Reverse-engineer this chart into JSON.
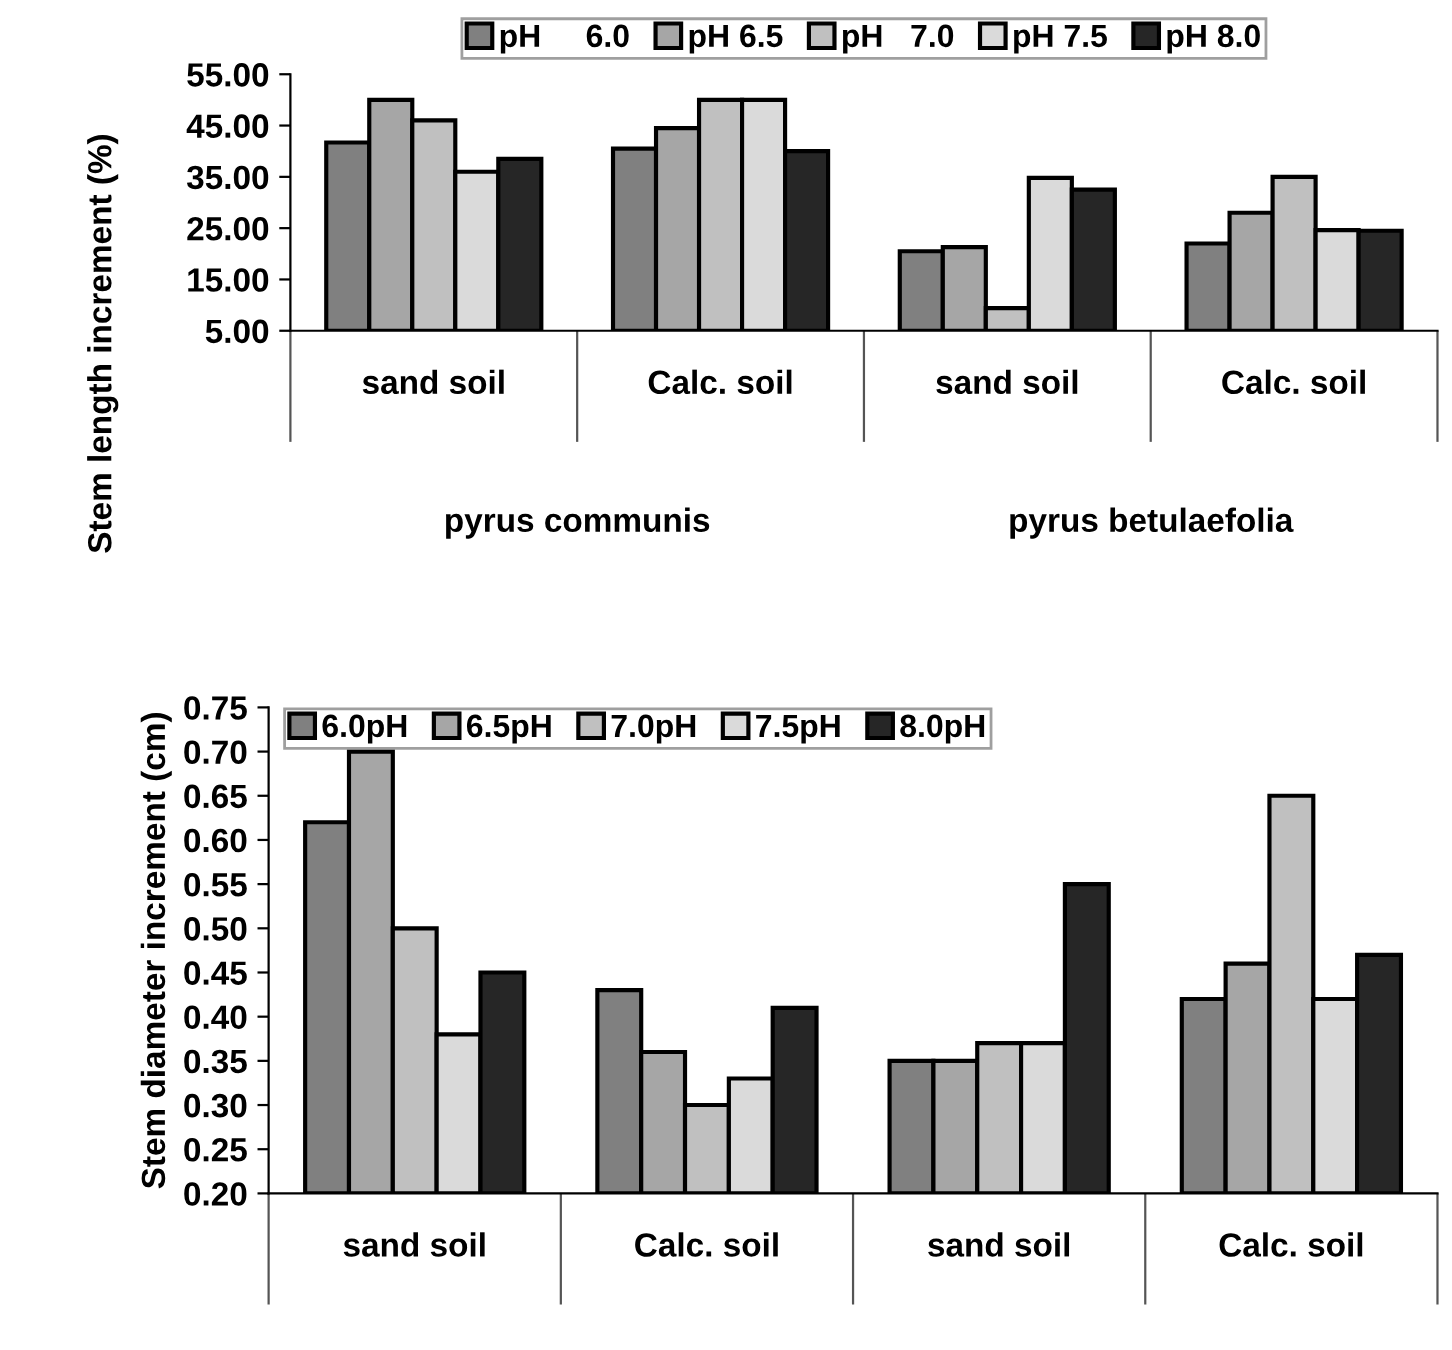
{
  "chart_data": [
    {
      "type": "bar",
      "ylabel": "Stem length increment (%)",
      "categories": [
        "sand soil",
        "Calc. soil",
        "sand soil",
        "Calc. soil"
      ],
      "series": [
        {
          "name": "pH     6.0",
          "color": "#808080",
          "values": [
            41.7,
            40.5,
            20.5,
            22
          ]
        },
        {
          "name": "pH 6.5",
          "color": "#a6a6a6",
          "values": [
            50,
            44.5,
            21.3,
            28
          ]
        },
        {
          "name": "pH   7.0",
          "color": "#c0c0c0",
          "values": [
            46,
            50,
            9.4,
            35
          ]
        },
        {
          "name": "pH 7.5",
          "color": "#dadada",
          "values": [
            36,
            50,
            34.8,
            24.6
          ]
        },
        {
          "name": "pH 8.0",
          "color": "#262626",
          "values": [
            38.5,
            40,
            32.5,
            24.5
          ]
        }
      ],
      "ylim": [
        5,
        55
      ],
      "yticks": [
        {
          "value": 5,
          "label": "5.00"
        },
        {
          "value": 15,
          "label": "15.00"
        },
        {
          "value": 25,
          "label": "25.00"
        },
        {
          "value": 35,
          "label": "35.00"
        },
        {
          "value": 45,
          "label": "45.00"
        },
        {
          "value": 55,
          "label": "55.00"
        }
      ],
      "annotations": [
        "pyrus communis",
        "pyrus betulaefolia"
      ],
      "legend": "top",
      "grid": false
    },
    {
      "type": "bar",
      "ylabel": "Stem diameter increment (cm)",
      "categories": [
        "sand soil",
        "Calc. soil",
        "sand soil",
        "Calc. soil"
      ],
      "series": [
        {
          "name": "6.0pH",
          "color": "#808080",
          "values": [
            0.62,
            0.43,
            0.35,
            0.42
          ]
        },
        {
          "name": "6.5pH",
          "color": "#a6a6a6",
          "values": [
            0.7,
            0.36,
            0.35,
            0.46
          ]
        },
        {
          "name": "7.0pH",
          "color": "#c0c0c0",
          "values": [
            0.5,
            0.3,
            0.37,
            0.65
          ]
        },
        {
          "name": "7.5pH",
          "color": "#dadada",
          "values": [
            0.38,
            0.33,
            0.37,
            0.42
          ]
        },
        {
          "name": "8.0pH",
          "color": "#262626",
          "values": [
            0.45,
            0.41,
            0.55,
            0.47
          ]
        }
      ],
      "ylim": [
        0.2,
        0.75
      ],
      "yticks": [
        {
          "value": 0.2,
          "label": "0.20"
        },
        {
          "value": 0.25,
          "label": "0.25"
        },
        {
          "value": 0.3,
          "label": "0.30"
        },
        {
          "value": 0.35,
          "label": "0.35"
        },
        {
          "value": 0.4,
          "label": "0.40"
        },
        {
          "value": 0.45,
          "label": "0.45"
        },
        {
          "value": 0.5,
          "label": "0.50"
        },
        {
          "value": 0.55,
          "label": "0.55"
        },
        {
          "value": 0.6,
          "label": "0.60"
        },
        {
          "value": 0.65,
          "label": "0.65"
        },
        {
          "value": 0.7,
          "label": "0.70"
        },
        {
          "value": 0.75,
          "label": "0.75"
        }
      ],
      "legend": "top left",
      "grid": false
    }
  ]
}
